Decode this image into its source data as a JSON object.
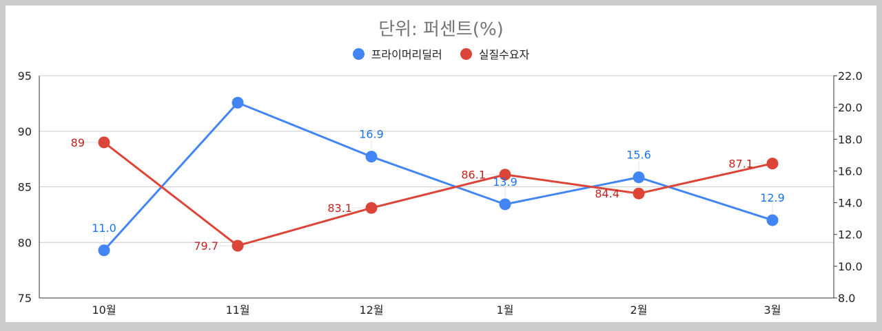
{
  "chart_data": {
    "type": "line",
    "title": "단위: 퍼센트(%)",
    "categories": [
      "10월",
      "11월",
      "12월",
      "1월",
      "2월",
      "3월"
    ],
    "series": [
      {
        "name": "프라이머리딜러",
        "axis": "right",
        "color": "#4285f4",
        "label_color": "#1a73e8",
        "values": [
          11.0,
          20.3,
          16.9,
          13.9,
          15.6,
          12.9
        ],
        "labels": [
          "11.0",
          "",
          "16.9",
          "13.9",
          "15.6",
          "12.9"
        ]
      },
      {
        "name": "실질수요자",
        "axis": "left",
        "color": "#db4437",
        "label_color": "#c5221f",
        "values": [
          89,
          79.7,
          83.1,
          86.1,
          84.4,
          87.1
        ],
        "labels": [
          "89",
          "79.7",
          "83.1",
          "86.1",
          "84.4",
          "87.1"
        ]
      }
    ],
    "y_left": {
      "min": 75,
      "max": 95,
      "ticks": [
        "75",
        "80",
        "85",
        "90",
        "95"
      ]
    },
    "y_right": {
      "min": 8,
      "max": 22,
      "ticks": [
        "8.0",
        "10.0",
        "12.0",
        "14.0",
        "16.0",
        "18.0",
        "20.0",
        "22.0"
      ]
    },
    "grid": true,
    "legend_position": "top"
  }
}
